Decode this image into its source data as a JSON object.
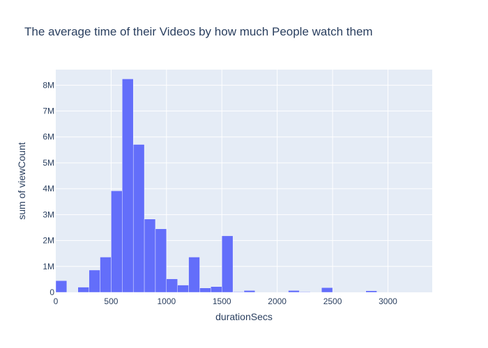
{
  "chart_data": {
    "type": "bar",
    "title": "The average time of their Videos by how much People watch them",
    "xlabel": "durationSecs",
    "ylabel": "sum of viewCount",
    "xlim": [
      0,
      3400
    ],
    "ylim": [
      0,
      8600000
    ],
    "bin_size": 100,
    "x_ticks": [
      0,
      500,
      1000,
      1500,
      2000,
      2500,
      3000
    ],
    "x_tick_labels": [
      "0",
      "500",
      "1000",
      "1500",
      "2000",
      "2500",
      "3000"
    ],
    "y_ticks": [
      0,
      1000000,
      2000000,
      3000000,
      4000000,
      5000000,
      6000000,
      7000000,
      8000000
    ],
    "y_tick_labels": [
      "0",
      "1M",
      "2M",
      "3M",
      "4M",
      "5M",
      "6M",
      "7M",
      "8M"
    ],
    "bin_starts": [
      0,
      200,
      300,
      400,
      500,
      600,
      700,
      800,
      900,
      1000,
      1100,
      1200,
      1300,
      1400,
      1500,
      1600,
      1700,
      2100,
      2200,
      2400,
      2800
    ],
    "values": [
      450000,
      200000,
      860000,
      1360000,
      3920000,
      8240000,
      5710000,
      2830000,
      2450000,
      520000,
      280000,
      1360000,
      170000,
      220000,
      2180000,
      20000,
      70000,
      70000,
      20000,
      180000,
      60000
    ],
    "grid": true,
    "colors": {
      "bar": "#636efa",
      "plot_bg": "#e5ecf6",
      "grid": "#ffffff",
      "text": "#2a3f5f"
    }
  }
}
